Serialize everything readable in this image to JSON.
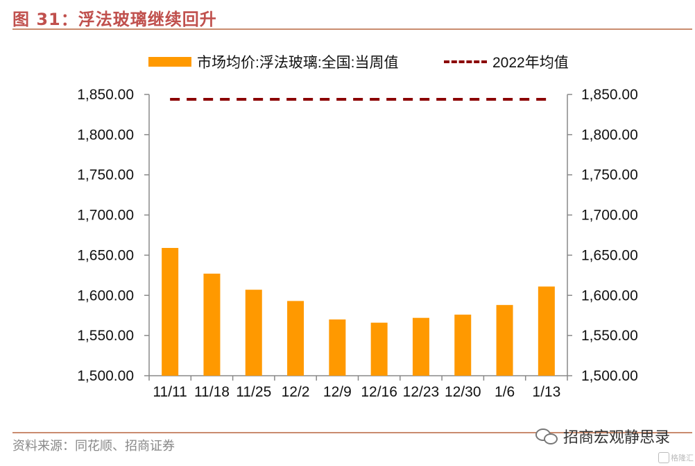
{
  "figure": {
    "title": "图 31：浮法玻璃继续回升",
    "source": "资料来源：同花顺、招商证券",
    "watermark": "招商宏观静思录",
    "watermark_sub": "格隆汇"
  },
  "chart_data": {
    "type": "bar",
    "categories": [
      "11/11",
      "11/18",
      "11/25",
      "12/2",
      "12/9",
      "12/16",
      "12/23",
      "12/30",
      "1/6",
      "1/13"
    ],
    "series": [
      {
        "name": "市场均价:浮法玻璃:全国:当周值",
        "type": "bar",
        "color": "#FF9900",
        "values": [
          1659,
          1627,
          1607,
          1593,
          1570,
          1566,
          1572,
          1576,
          1588,
          1611
        ]
      },
      {
        "name": "2022年均值",
        "type": "line",
        "style": "dashed",
        "color": "#8B0000",
        "values": [
          1844,
          1844,
          1844,
          1844,
          1844,
          1844,
          1844,
          1844,
          1844,
          1844
        ]
      }
    ],
    "ylim": [
      1500,
      1850
    ],
    "yticks": [
      "1,500.00",
      "1,550.00",
      "1,600.00",
      "1,650.00",
      "1,700.00",
      "1,750.00",
      "1,800.00",
      "1,850.00"
    ],
    "ytick_values": [
      1500,
      1550,
      1600,
      1650,
      1700,
      1750,
      1800,
      1850
    ],
    "y2ticks": [
      "1,500.00",
      "1,550.00",
      "1,600.00",
      "1,650.00",
      "1,700.00",
      "1,750.00",
      "1,800.00",
      "1,850.00"
    ],
    "legend_position": "top",
    "grid": false
  }
}
